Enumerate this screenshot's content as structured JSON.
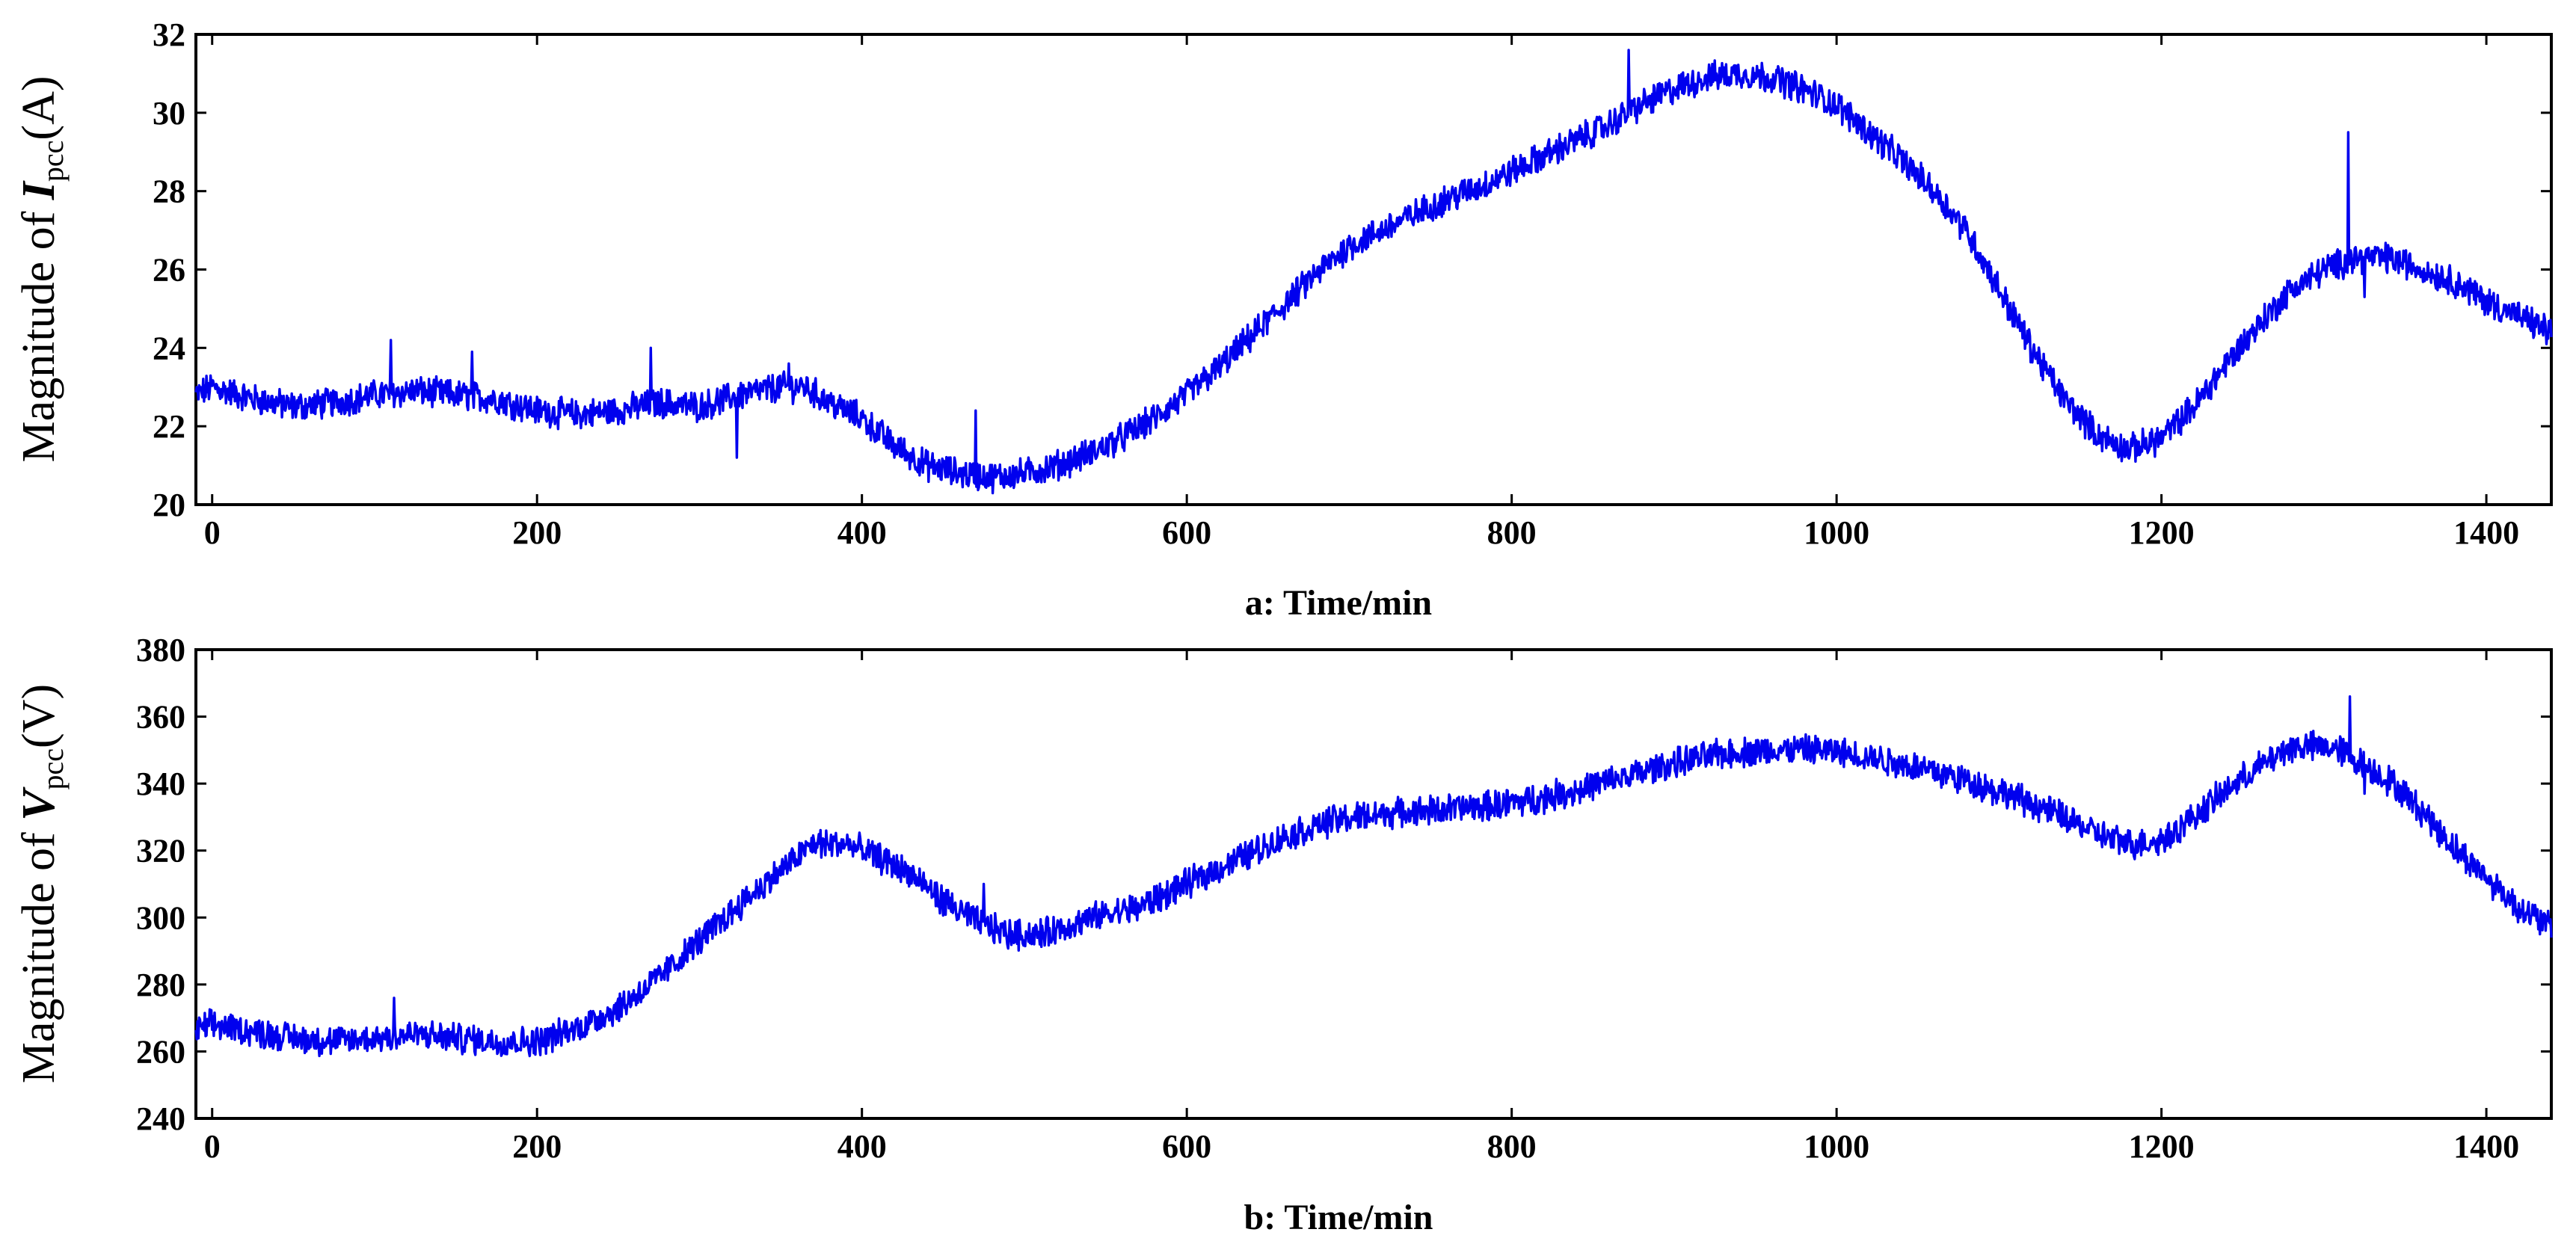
{
  "chart_data": [
    {
      "type": "line",
      "caption": "a:  Time/min",
      "ylabel": {
        "prefix": "Magnitude of ",
        "symbol": "I",
        "subscript": "pcc",
        "unit": "(A)"
      },
      "xlim": [
        -10,
        1440
      ],
      "ylim": [
        20,
        32
      ],
      "xticks": [
        0,
        200,
        400,
        600,
        800,
        1000,
        1200,
        1400
      ],
      "yticks": [
        20,
        22,
        24,
        26,
        28,
        30,
        32
      ],
      "xtick_labels": [
        "0",
        "200",
        "400",
        "600",
        "800",
        "1000",
        "1200",
        "1400"
      ],
      "ytick_labels": [
        "20",
        "22",
        "24",
        "26",
        "28",
        "30",
        "32"
      ],
      "color": "#0000ee",
      "series": [
        {
          "name": "Ipcc",
          "x": [
            -10,
            0,
            25,
            50,
            75,
            100,
            125,
            150,
            175,
            200,
            225,
            250,
            275,
            300,
            325,
            350,
            365,
            380,
            400,
            420,
            440,
            460,
            480,
            500,
            520,
            540,
            560,
            580,
            600,
            620,
            640,
            660,
            680,
            700,
            720,
            740,
            760,
            780,
            800,
            820,
            840,
            860,
            880,
            900,
            920,
            940,
            960,
            980,
            1000,
            1020,
            1040,
            1060,
            1080,
            1100,
            1120,
            1140,
            1160,
            1180,
            1200,
            1220,
            1240,
            1260,
            1280,
            1300,
            1320,
            1340,
            1360,
            1380,
            1400,
            1420,
            1440
          ],
          "y": [
            22.8,
            23.0,
            22.7,
            22.5,
            22.6,
            22.8,
            22.9,
            22.8,
            22.7,
            22.4,
            22.3,
            22.4,
            22.6,
            22.5,
            22.8,
            23.0,
            23.0,
            22.6,
            22.2,
            21.5,
            21.0,
            20.8,
            20.7,
            20.8,
            21.0,
            21.3,
            21.7,
            22.2,
            22.8,
            23.5,
            24.3,
            25.1,
            25.9,
            26.6,
            27.0,
            27.4,
            27.8,
            28.1,
            28.5,
            28.9,
            29.3,
            29.7,
            30.2,
            30.6,
            30.9,
            31.0,
            30.9,
            30.6,
            30.2,
            29.5,
            28.8,
            28.0,
            27.0,
            25.5,
            24.0,
            22.7,
            21.8,
            21.4,
            21.7,
            22.5,
            23.6,
            24.6,
            25.5,
            26.0,
            26.3,
            26.3,
            26.0,
            25.7,
            25.2,
            24.8,
            24.4
          ],
          "spikes": [
            [
              110,
              24.2
            ],
            [
              160,
              23.9
            ],
            [
              270,
              24.0
            ],
            [
              323,
              21.2
            ],
            [
              355,
              23.6
            ],
            [
              470,
              22.4
            ],
            [
              872,
              31.6
            ],
            [
              1315,
              29.5
            ],
            [
              1325,
              25.3
            ]
          ]
        }
      ]
    },
    {
      "type": "line",
      "caption": "b:  Time/min",
      "ylabel": {
        "prefix": "Magnitude of ",
        "symbol": "V",
        "subscript": "pcc",
        "unit": "(V)"
      },
      "xlim": [
        -10,
        1440
      ],
      "ylim": [
        240,
        380
      ],
      "xticks": [
        0,
        200,
        400,
        600,
        800,
        1000,
        1200,
        1400
      ],
      "yticks": [
        240,
        260,
        280,
        300,
        320,
        340,
        360,
        380
      ],
      "xtick_labels": [
        "0",
        "200",
        "400",
        "600",
        "800",
        "1000",
        "1200",
        "1400"
      ],
      "ytick_labels": [
        "240",
        "260",
        "280",
        "300",
        "320",
        "340",
        "360",
        "380"
      ],
      "color": "#0000ee",
      "series": [
        {
          "name": "Vpcc",
          "x": [
            -10,
            0,
            25,
            50,
            75,
            100,
            125,
            150,
            175,
            200,
            225,
            250,
            275,
            300,
            325,
            350,
            370,
            390,
            410,
            430,
            450,
            470,
            490,
            510,
            530,
            550,
            570,
            600,
            630,
            660,
            690,
            720,
            750,
            780,
            810,
            840,
            870,
            900,
            930,
            960,
            990,
            1020,
            1050,
            1080,
            1110,
            1140,
            1160,
            1180,
            1200,
            1220,
            1240,
            1260,
            1280,
            1300,
            1310,
            1320,
            1340,
            1360,
            1380,
            1400,
            1420,
            1440
          ],
          "y": [
            266,
            268,
            266,
            264,
            263,
            264,
            265,
            264,
            263,
            263,
            267,
            273,
            282,
            293,
            304,
            314,
            322,
            322,
            318,
            313,
            305,
            299,
            295,
            295,
            298,
            301,
            303,
            310,
            317,
            324,
            329,
            331,
            332,
            333,
            335,
            338,
            342,
            346,
            349,
            350,
            350,
            348,
            345,
            341,
            336,
            330,
            325,
            322,
            323,
            330,
            338,
            345,
            351,
            351,
            350,
            347,
            341,
            332,
            321,
            312,
            303,
            297
          ],
          "spikes": [
            [
              112,
              276
            ],
            [
              475,
              310
            ],
            [
              1316,
              366
            ],
            [
              1325,
              337
            ]
          ]
        }
      ]
    }
  ]
}
